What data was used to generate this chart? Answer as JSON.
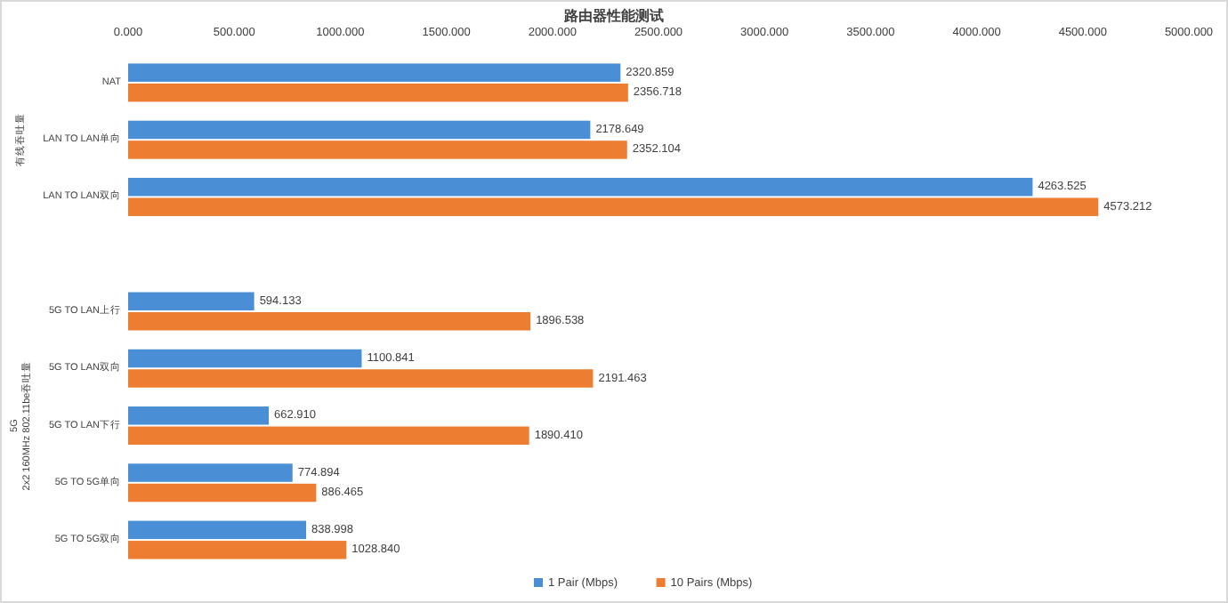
{
  "chart_data": {
    "type": "bar",
    "orientation": "horizontal",
    "title": "路由器性能测试",
    "categories": [
      "NAT",
      "LAN TO LAN单向",
      "LAN TO LAN双向",
      null,
      "5G TO LAN上行",
      "5G TO LAN双向",
      "5G TO LAN下行",
      "5G TO 5G单向",
      "5G TO 5G双向"
    ],
    "series": [
      {
        "name": "1 Pair (Mbps)",
        "color": "#4a8fd6",
        "values": [
          2320.859,
          2178.649,
          4263.525,
          null,
          594.133,
          1100.841,
          662.91,
          774.894,
          838.998
        ],
        "value_labels": [
          "2320.859",
          "2178.649",
          "4263.525",
          null,
          "594.133",
          "1100.841",
          "662.910",
          "774.894",
          "838.998"
        ]
      },
      {
        "name": "10 Pairs (Mbps)",
        "color": "#ed7d31",
        "values": [
          2356.718,
          2352.104,
          4573.212,
          null,
          1896.538,
          2191.463,
          1890.41,
          886.465,
          1028.84
        ],
        "value_labels": [
          "2356.718",
          "2352.104",
          "4573.212",
          null,
          "1896.538",
          "2191.463",
          "1890.410",
          "886.465",
          "1028.840"
        ]
      }
    ],
    "xlim": [
      0,
      5000
    ],
    "xticks": [
      {
        "value": 0,
        "label": "0.000"
      },
      {
        "value": 500,
        "label": "500.000"
      },
      {
        "value": 1000,
        "label": "1000.000"
      },
      {
        "value": 1500,
        "label": "1500.000"
      },
      {
        "value": 2000,
        "label": "2000.000"
      },
      {
        "value": 2500,
        "label": "2500.000"
      },
      {
        "value": 3000,
        "label": "3000.000"
      },
      {
        "value": 3500,
        "label": "3500.000"
      },
      {
        "value": 4000,
        "label": "4000.000"
      },
      {
        "value": 4500,
        "label": "4500.000"
      },
      {
        "value": 5000,
        "label": "5000.000"
      }
    ],
    "annotations": [
      "有线吞吐量",
      "5G\n2x2 160MHz 802.11be吞吐量"
    ],
    "legend": "bottom",
    "grid": false
  }
}
